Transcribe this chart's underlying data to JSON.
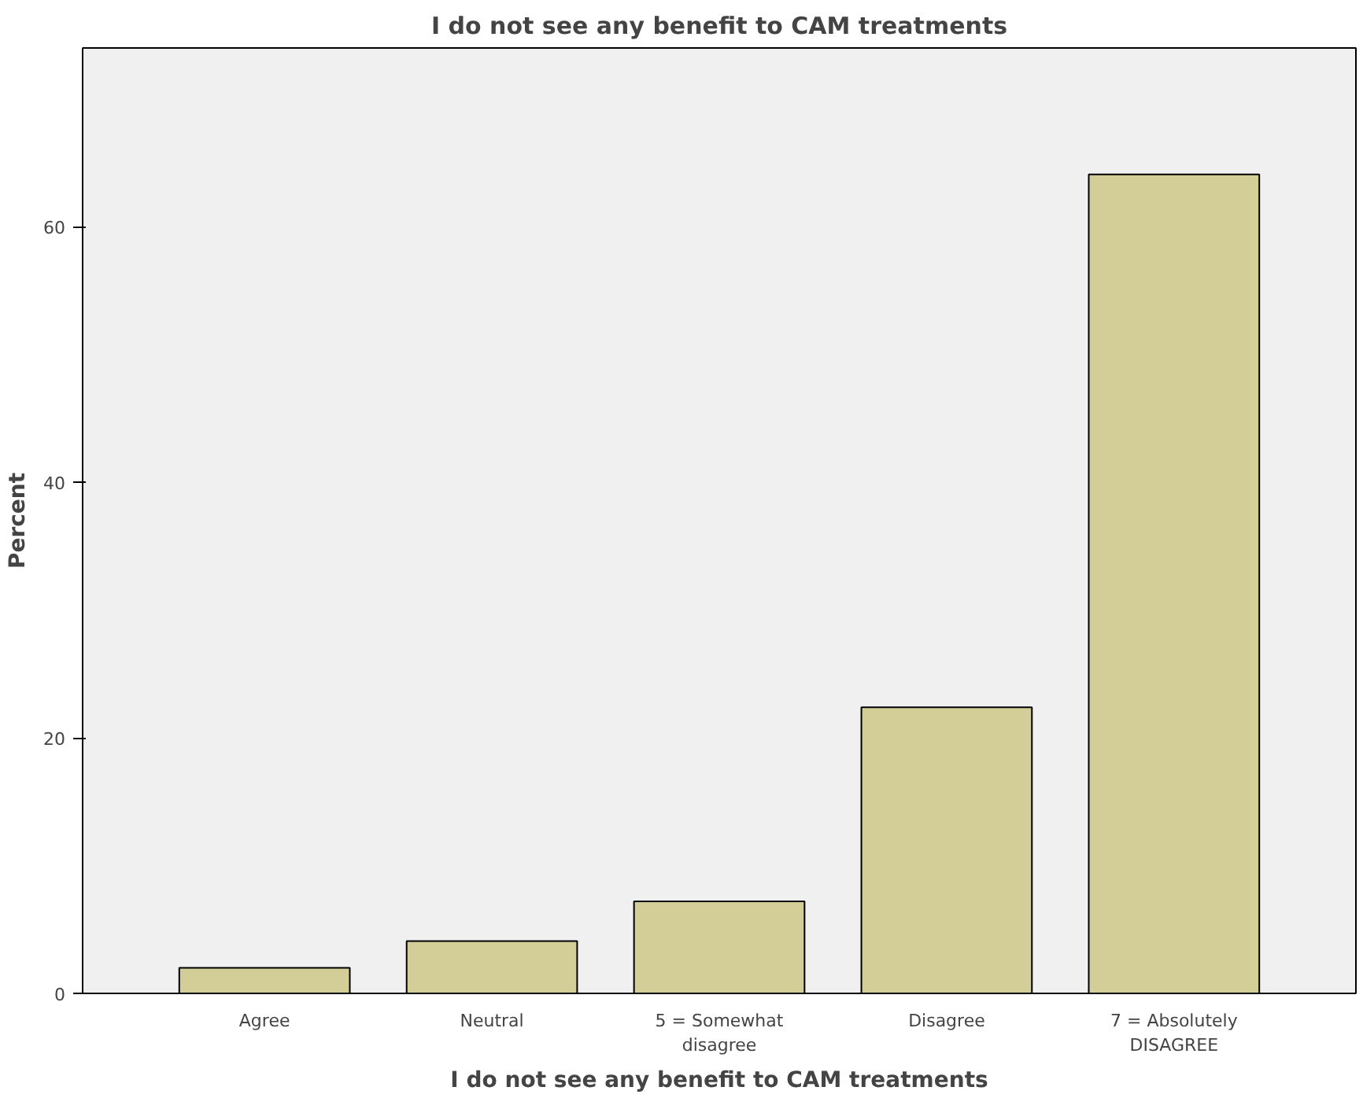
{
  "chart_data": {
    "type": "bar",
    "title": "I do not see any benefit to CAM treatments",
    "xlabel": "I do not see any benefit to CAM treatments",
    "ylabel": "Percent",
    "categories": [
      "Agree",
      "Neutral",
      "5 = Somewhat\ndisagree",
      "Disagree",
      "7 = Absolutely\nDISAGREE"
    ],
    "values": [
      2.0,
      4.1,
      7.2,
      22.4,
      64.1
    ],
    "color": "#d3ce97",
    "ylim": [
      0,
      74
    ],
    "yticks": [
      0,
      20,
      40,
      60
    ],
    "grid": false
  }
}
